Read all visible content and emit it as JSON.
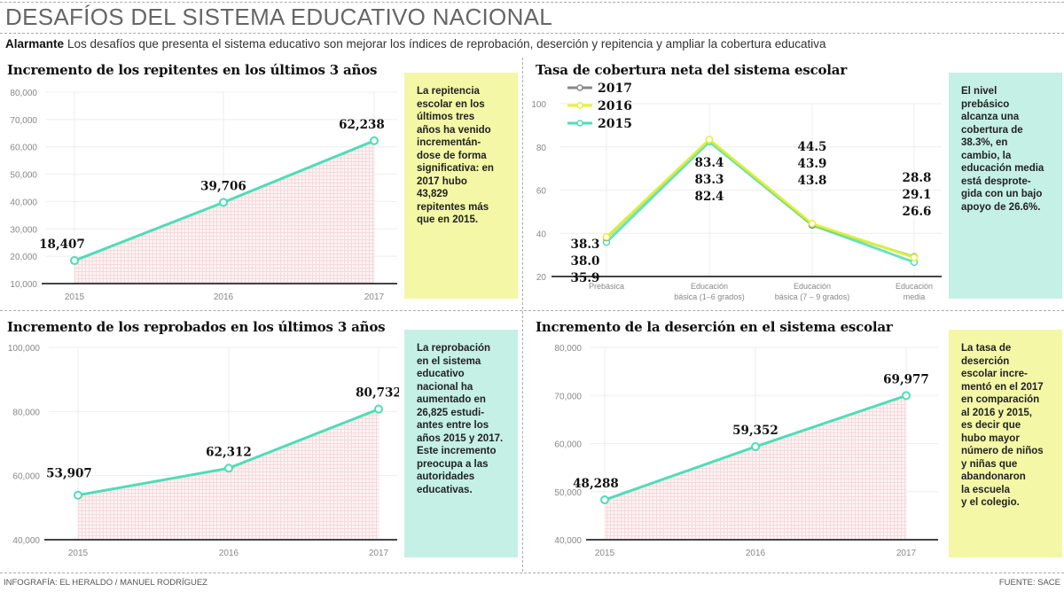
{
  "header": {
    "title": "DESAFÍOS DEL SISTEMA EDUCATIVO NACIONAL",
    "lead_bold": "Alarmante",
    "lead_text": "Los desafíos que presenta el sistema educativo son mejorar los índices de reprobación, deserción y repitencia y ampliar la cobertura educativa"
  },
  "panels": {
    "repitentes": {
      "title": "Incremento de los repitentes en los últimos 3 años",
      "note": [
        "La repitencia",
        "escolar en los",
        "últimos tres",
        "años ha venido",
        "incrementán-",
        "dose de forma",
        "significativa: en",
        "2017 hubo",
        "43,829",
        "repitentes más",
        "que en 2015."
      ]
    },
    "cobertura": {
      "title": "Tasa de cobertura neta del sistema escolar",
      "note": [
        "El nivel",
        "prebásico",
        "alcanza una",
        "cobertura de",
        "38.3%, en",
        "cambio, la",
        "educación media",
        "está desprote-",
        "gida con un bajo",
        "apoyo de 26.6%."
      ]
    },
    "reprobados": {
      "title": "Incremento de los reprobados en los últimos 3 años",
      "note": [
        "La reprobación",
        "en el sistema",
        "educativo",
        "nacional ha",
        "aumentado en",
        "26,825 estudi-",
        "antes entre los",
        "años 2015 y 2017.",
        "Este incremento",
        "preocupa a las",
        "autoridades",
        "educativas."
      ]
    },
    "desercion": {
      "title": "Incremento de la deserción en el sistema escolar",
      "note": [
        "La tasa de",
        "deserción",
        "escolar incre-",
        "mentó en el 2017",
        "en comparación",
        "al 2016 y 2015,",
        "es decir que",
        "hubo mayor",
        "número de niños",
        "y niñas que",
        "abandonaron",
        "la escuela",
        "y el colegio."
      ]
    }
  },
  "footer": {
    "credit": "INFOGRAFÍA: EL HERALDO / MANUEL RODRÍGUEZ",
    "source": "FUENTE: SACE"
  },
  "colors": {
    "line_teal": "#4fdcb8",
    "series_2016": "#e6f23a",
    "series_2017": "#888888",
    "note_yellow": "#f3f7a6",
    "note_teal": "#c5f0e6",
    "area_fill": "#f6d9dc"
  },
  "chart_data": [
    {
      "type": "area",
      "title": "Incremento de los repitentes en los últimos 3 años",
      "categories": [
        "2015",
        "2016",
        "2017"
      ],
      "values": [
        18407,
        39706,
        62238
      ],
      "value_labels": [
        "18,407",
        "39,706",
        "62,238"
      ],
      "yticks": [
        "80,000",
        "70,000",
        "60,000",
        "50,000",
        "40,000",
        "30,000",
        "20,000",
        "10,000"
      ],
      "ylim": [
        10000,
        80000
      ],
      "xlabel": "",
      "ylabel": ""
    },
    {
      "type": "line",
      "title": "Tasa de cobertura neta del sistema escolar",
      "categories": [
        "Prebásica",
        "Educación básica (1-6 grados)",
        "Educación básica (7-9 grados)",
        "Educación media"
      ],
      "category_lines": [
        [
          "Prebásica"
        ],
        [
          "Educación",
          "básica (1–6 grados)"
        ],
        [
          "Educación",
          "básica (7 – 9 grados)"
        ],
        [
          "Educación",
          "media"
        ]
      ],
      "legend": [
        "2017",
        "2016",
        "2015"
      ],
      "series": [
        {
          "name": "2017",
          "values": [
            38.0,
            83.3,
            43.9,
            29.1
          ]
        },
        {
          "name": "2016",
          "values": [
            38.3,
            83.4,
            44.5,
            28.8
          ]
        },
        {
          "name": "2015",
          "values": [
            35.9,
            82.4,
            43.8,
            26.6
          ]
        }
      ],
      "value_label_stacks": [
        [
          "38.3",
          "38.0",
          "35.9"
        ],
        [
          "83.4",
          "83.3",
          "82.4"
        ],
        [
          "44.5",
          "43.9",
          "43.8"
        ],
        [
          "28.8",
          "29.1",
          "26.6"
        ]
      ],
      "yticks": [
        "100",
        "80",
        "60",
        "40",
        "20"
      ],
      "ylim": [
        20,
        100
      ]
    },
    {
      "type": "area",
      "title": "Incremento de los reprobados en los últimos 3 años",
      "categories": [
        "2015",
        "2016",
        "2017"
      ],
      "values": [
        53907,
        62312,
        80732
      ],
      "value_labels": [
        "53,907",
        "62,312",
        "80,732"
      ],
      "yticks": [
        "100,000",
        "80,000",
        "60,000",
        "40,000"
      ],
      "ylim": [
        40000,
        100000
      ]
    },
    {
      "type": "area",
      "title": "Incremento de la deserción en el sistema escolar",
      "categories": [
        "2015",
        "2016",
        "2017"
      ],
      "values": [
        48288,
        59352,
        69977
      ],
      "value_labels": [
        "48,288",
        "59,352",
        "69,977"
      ],
      "yticks": [
        "80,000",
        "70,000",
        "60,000",
        "50,000",
        "40,000"
      ],
      "ylim": [
        40000,
        80000
      ]
    }
  ]
}
